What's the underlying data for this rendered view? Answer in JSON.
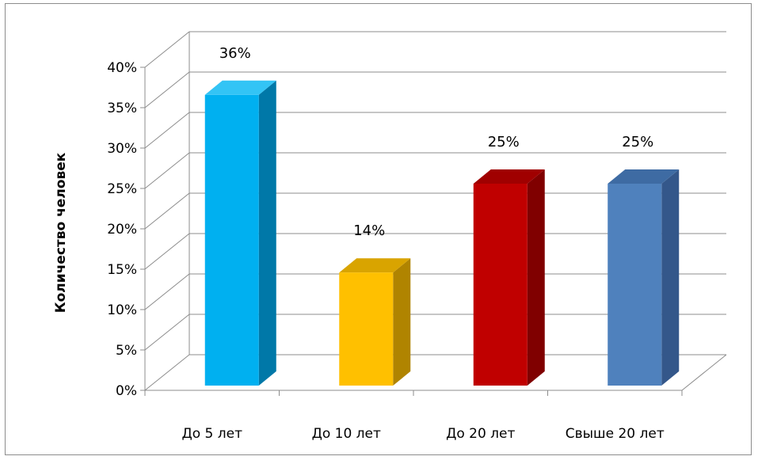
{
  "chart_data": {
    "type": "bar",
    "title": "",
    "xlabel": "",
    "ylabel": "Количество человек",
    "categories": [
      "До 5 лет",
      "До 10 лет",
      "До 20 лет",
      "Свыше 20 лет"
    ],
    "values": [
      36,
      14,
      25,
      25
    ],
    "data_labels": [
      "36%",
      "14%",
      "25%",
      "25%"
    ],
    "y_ticks": [
      "0%",
      "5%",
      "10%",
      "15%",
      "20%",
      "25%",
      "30%",
      "35%",
      "40%"
    ],
    "ylim": [
      0,
      40
    ],
    "grid": true,
    "legend": "none",
    "style": "3d-column",
    "colors": [
      "#00B0F0",
      "#FFC000",
      "#C00000",
      "#4F81BD"
    ],
    "side_colors": [
      "#0078A8",
      "#B08400",
      "#800000",
      "#34578A"
    ],
    "top_colors": [
      "#33C4F5",
      "#D9A400",
      "#A00000",
      "#3E6BA3"
    ]
  }
}
